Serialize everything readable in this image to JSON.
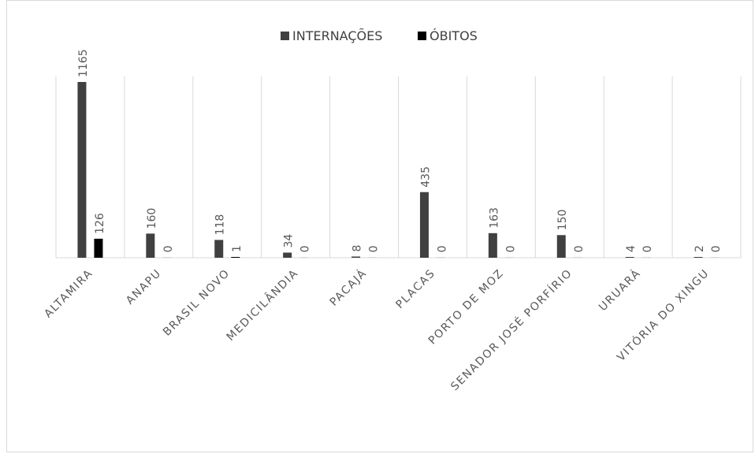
{
  "chart_data": {
    "type": "bar",
    "title": "",
    "xlabel": "",
    "ylabel": "",
    "ylim": [
      0,
      1165
    ],
    "grid": "vertical category separators",
    "legend_position": "top",
    "categories": [
      "ALTAMIRA",
      "ANAPU",
      "BRASIL NOVO",
      "MEDICILÂNDIA",
      "PACAJÁ",
      "PLACAS",
      "PORTO DE MOZ",
      "SENADOR JOSÉ PORFÍRIO",
      "URUARÁ",
      "VITÓRIA DO XINGU"
    ],
    "series": [
      {
        "name": "INTERNAÇÕES",
        "color": "#404040",
        "values": [
          1165,
          160,
          118,
          34,
          8,
          435,
          163,
          150,
          4,
          2
        ]
      },
      {
        "name": "ÓBITOS",
        "color": "#000000",
        "values": [
          126,
          0,
          1,
          0,
          0,
          0,
          0,
          0,
          0,
          0
        ]
      }
    ]
  }
}
